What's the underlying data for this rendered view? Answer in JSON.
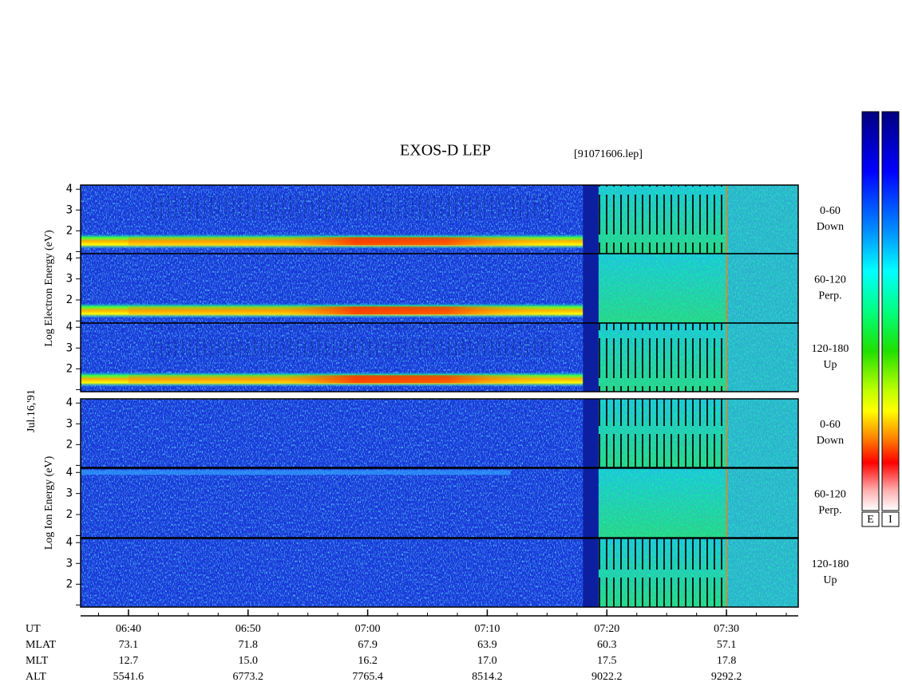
{
  "chart_data": {
    "type": "spectrogram",
    "title": "EXOS-D LEP",
    "subtitle": "[91071606.lep]",
    "date_label": "Jul.16,'91",
    "xlabel": "UT",
    "xlim": [
      "06:36",
      "07:36"
    ],
    "xticks": [
      "06:40",
      "06:50",
      "07:00",
      "07:10",
      "07:20",
      "07:30"
    ],
    "ylim": [
      0.9,
      4.2
    ],
    "yticks": [
      {
        "value": 1,
        "label": null
      },
      2,
      3,
      4
    ],
    "groups": [
      {
        "ylabel": "Log Electron Energy (eV)",
        "species": "electron",
        "panels": [
          {
            "angle": "0-60",
            "direction": "Down"
          },
          {
            "angle": "60-120",
            "direction": "Perp."
          },
          {
            "angle": "120-180",
            "direction": "Up"
          }
        ]
      },
      {
        "ylabel": "Log Ion Energy (eV)",
        "species": "ion",
        "panels": [
          {
            "angle": "0-60",
            "direction": "Down"
          },
          {
            "angle": "60-120",
            "direction": "Perp."
          },
          {
            "angle": "120-180",
            "direction": "Up"
          }
        ]
      }
    ],
    "ephemeris": [
      {
        "name": "MLAT",
        "values": [
          "73.1",
          "71.8",
          "67.9",
          "63.9",
          "60.3",
          "57.1"
        ]
      },
      {
        "name": "MLT",
        "values": [
          "12.7",
          "15.0",
          "16.2",
          "17.0",
          "17.5",
          "17.8"
        ]
      },
      {
        "name": "ALT",
        "values": [
          "5541.6",
          "6773.2",
          "7765.4",
          "8514.2",
          "9022.2",
          "9292.2"
        ]
      }
    ],
    "colorbars": [
      "E",
      "I"
    ]
  }
}
